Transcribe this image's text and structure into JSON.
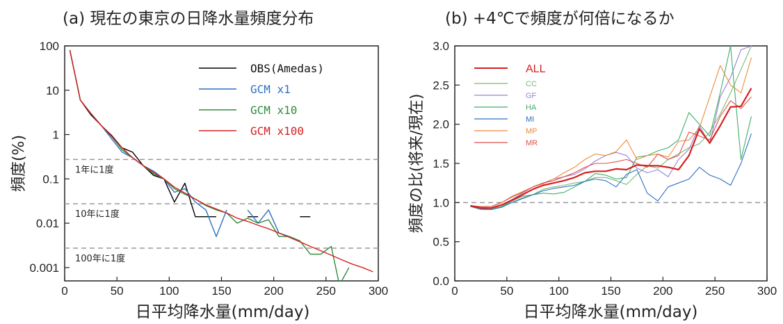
{
  "panel_a": {
    "title": "(a) 現在の東京の日降水量頻度分布",
    "xlabel": "日平均降水量(mm/day)",
    "ylabel": "頻度(%)",
    "ref_labels": [
      "1年に1度",
      "10年に1度",
      "100年に1度"
    ]
  },
  "panel_b": {
    "title": "(b) +4℃で頻度が何倍になるか",
    "xlabel": "日平均降水量(mm/day)",
    "ylabel": "頻度の比(将来/現在)"
  },
  "chart_data": [
    {
      "type": "line",
      "title": "(a) 現在の東京の日降水量頻度分布",
      "xlabel": "日平均降水量(mm/day)",
      "ylabel": "頻度(%)",
      "xlim": [
        0,
        300
      ],
      "ylim": [
        0.0005,
        100
      ],
      "yscale": "log",
      "x_ticks": [
        0,
        50,
        100,
        150,
        200,
        250,
        300
      ],
      "y_ticks": [
        0.001,
        0.01,
        0.1,
        1,
        10,
        100
      ],
      "y_tick_labels": [
        "0.001",
        "0.01",
        "0.1",
        "1",
        "10",
        "100"
      ],
      "grid": false,
      "legend": "top-right",
      "reference_lines": [
        {
          "y": 0.274,
          "label": "1年に1度"
        },
        {
          "y": 0.0274,
          "label": "10年に1度"
        },
        {
          "y": 0.00274,
          "label": "100年に1度"
        }
      ],
      "series": [
        {
          "name": "OBS(Amedas)",
          "color": "#000000",
          "segments": [
            [
              [
                5,
                80
              ],
              [
                15,
                6
              ],
              [
                25,
                2.8
              ],
              [
                35,
                1.6
              ],
              [
                45,
                0.95
              ],
              [
                55,
                0.5
              ],
              [
                65,
                0.4
              ],
              [
                75,
                0.2
              ],
              [
                85,
                0.12
              ],
              [
                95,
                0.1
              ],
              [
                105,
                0.03
              ],
              [
                115,
                0.08
              ],
              [
                125,
                0.014
              ],
              [
                135,
                0.014
              ],
              [
                145,
                0.014
              ]
            ],
            [
              [
                175,
                0.014
              ],
              [
                185,
                0.014
              ]
            ],
            [
              [
                225,
                0.014
              ],
              [
                235,
                0.014
              ]
            ]
          ]
        },
        {
          "name": "GCM x1",
          "color": "#2e6fc2",
          "segments": [
            [
              [
                5,
                80
              ],
              [
                15,
                6
              ],
              [
                25,
                3
              ],
              [
                35,
                1.6
              ],
              [
                45,
                0.8
              ],
              [
                55,
                0.4
              ],
              [
                65,
                0.3
              ],
              [
                75,
                0.2
              ],
              [
                85,
                0.15
              ],
              [
                95,
                0.1
              ],
              [
                105,
                0.05
              ],
              [
                115,
                0.06
              ],
              [
                125,
                0.03
              ],
              [
                135,
                0.02
              ],
              [
                145,
                0.005
              ],
              [
                155,
                0.02
              ]
            ],
            [
              [
                175,
                0.02
              ],
              [
                185,
                0.01
              ],
              [
                195,
                0.02
              ],
              [
                205,
                0.006
              ],
              [
                215,
                0.005
              ]
            ]
          ]
        },
        {
          "name": "GCM x10",
          "color": "#2e8b3a",
          "segments": [
            [
              [
                5,
                80
              ],
              [
                15,
                6
              ],
              [
                25,
                3
              ],
              [
                35,
                1.6
              ],
              [
                45,
                0.9
              ],
              [
                55,
                0.45
              ],
              [
                65,
                0.3
              ],
              [
                75,
                0.2
              ],
              [
                85,
                0.13
              ],
              [
                95,
                0.1
              ],
              [
                105,
                0.06
              ],
              [
                115,
                0.045
              ],
              [
                125,
                0.035
              ],
              [
                135,
                0.025
              ],
              [
                145,
                0.02
              ],
              [
                155,
                0.017
              ],
              [
                165,
                0.01
              ],
              [
                175,
                0.013
              ],
              [
                185,
                0.01
              ],
              [
                195,
                0.012
              ],
              [
                205,
                0.005
              ],
              [
                215,
                0.005
              ],
              [
                225,
                0.004
              ],
              [
                235,
                0.002
              ],
              [
                245,
                0.002
              ],
              [
                255,
                0.003
              ],
              [
                262,
                0.0005
              ]
            ],
            [
              [
                265,
                0.0005
              ],
              [
                272,
                0.001
              ]
            ]
          ]
        },
        {
          "name": "GCM x100",
          "color": "#d62020",
          "segments": [
            [
              [
                5,
                80
              ],
              [
                15,
                6
              ],
              [
                25,
                3
              ],
              [
                35,
                1.6
              ],
              [
                45,
                0.9
              ],
              [
                55,
                0.5
              ],
              [
                65,
                0.3
              ],
              [
                75,
                0.2
              ],
              [
                85,
                0.14
              ],
              [
                95,
                0.1
              ],
              [
                105,
                0.065
              ],
              [
                115,
                0.048
              ],
              [
                125,
                0.035
              ],
              [
                135,
                0.026
              ],
              [
                145,
                0.021
              ],
              [
                155,
                0.017
              ],
              [
                165,
                0.013
              ],
              [
                175,
                0.011
              ],
              [
                185,
                0.009
              ],
              [
                195,
                0.0075
              ],
              [
                205,
                0.006
              ],
              [
                215,
                0.0048
              ],
              [
                225,
                0.0038
              ],
              [
                235,
                0.003
              ],
              [
                245,
                0.0024
              ],
              [
                255,
                0.0019
              ],
              [
                265,
                0.0015
              ],
              [
                275,
                0.0012
              ],
              [
                285,
                0.001
              ],
              [
                295,
                0.0008
              ]
            ]
          ]
        }
      ]
    },
    {
      "type": "line",
      "title": "(b) +4℃で頻度が何倍になるか",
      "xlabel": "日平均降水量(mm/day)",
      "ylabel": "頻度の比(将来/現在)",
      "xlim": [
        0,
        300
      ],
      "ylim": [
        0,
        3
      ],
      "x_ticks": [
        0,
        50,
        100,
        150,
        200,
        250,
        300
      ],
      "y_ticks": [
        0.0,
        0.5,
        1.0,
        1.5,
        2.0,
        2.5,
        3.0
      ],
      "y_tick_labels": [
        "0.0",
        "0.5",
        "1.0",
        "1.5",
        "2.0",
        "2.5",
        "3.0"
      ],
      "grid": false,
      "legend": "top-left",
      "reference_lines": [
        {
          "y": 1.0
        }
      ],
      "series": [
        {
          "name": "ALL",
          "color": "#d62020",
          "bold": true,
          "x": [
            15,
            25,
            35,
            45,
            55,
            65,
            75,
            85,
            95,
            105,
            115,
            125,
            135,
            145,
            155,
            165,
            175,
            185,
            195,
            205,
            215,
            225,
            235,
            245,
            255,
            265,
            275,
            285
          ],
          "y": [
            0.96,
            0.93,
            0.93,
            0.97,
            1.03,
            1.1,
            1.17,
            1.22,
            1.25,
            1.28,
            1.32,
            1.38,
            1.4,
            1.4,
            1.43,
            1.42,
            1.48,
            1.47,
            1.47,
            1.45,
            1.42,
            1.6,
            1.94,
            1.76,
            1.98,
            2.22,
            2.23,
            2.46
          ]
        },
        {
          "name": "CC",
          "color": "#78b878",
          "x": [
            15,
            25,
            35,
            45,
            55,
            65,
            75,
            85,
            95,
            105,
            115,
            125,
            135,
            145,
            155,
            165,
            175,
            185,
            195,
            205,
            215,
            225,
            235,
            245,
            255,
            265,
            275,
            285
          ],
          "y": [
            0.95,
            0.91,
            0.91,
            0.95,
            1.0,
            1.06,
            1.1,
            1.17,
            1.2,
            1.22,
            1.25,
            1.27,
            1.32,
            1.32,
            1.28,
            1.23,
            1.36,
            1.47,
            1.44,
            1.55,
            1.62,
            1.7,
            1.75,
            1.9,
            2.13,
            2.4,
            2.7,
            3.0
          ]
        },
        {
          "name": "GF",
          "color": "#9a7ed0",
          "x": [
            15,
            25,
            35,
            45,
            55,
            65,
            75,
            85,
            95,
            105,
            115,
            125,
            135,
            145,
            155,
            165,
            175,
            185,
            195,
            205,
            215,
            225,
            235,
            245,
            255,
            265,
            275,
            285
          ],
          "y": [
            0.96,
            0.93,
            0.93,
            0.97,
            1.04,
            1.12,
            1.2,
            1.25,
            1.3,
            1.33,
            1.36,
            1.43,
            1.53,
            1.6,
            1.64,
            1.6,
            1.44,
            1.38,
            1.42,
            1.33,
            1.55,
            1.68,
            1.98,
            1.75,
            2.35,
            2.6,
            2.95,
            3.0
          ]
        },
        {
          "name": "HA",
          "color": "#3fae6a",
          "x": [
            15,
            25,
            35,
            45,
            55,
            65,
            75,
            85,
            95,
            105,
            115,
            125,
            135,
            145,
            155,
            165,
            175,
            185,
            195,
            205,
            215,
            225,
            235,
            245,
            255,
            265,
            275,
            285
          ],
          "y": [
            0.95,
            0.92,
            0.92,
            0.95,
            1.02,
            1.08,
            1.1,
            1.12,
            1.11,
            1.13,
            1.2,
            1.27,
            1.37,
            1.35,
            1.3,
            1.32,
            1.58,
            1.6,
            1.66,
            1.7,
            1.8,
            2.15,
            2.0,
            1.85,
            2.4,
            3.0,
            1.55,
            2.1
          ]
        },
        {
          "name": "MI",
          "color": "#2e6fc2",
          "x": [
            15,
            25,
            35,
            45,
            55,
            65,
            75,
            85,
            95,
            105,
            115,
            125,
            135,
            145,
            155,
            165,
            175,
            185,
            195,
            205,
            215,
            225,
            235,
            245,
            255,
            265,
            275,
            285
          ],
          "y": [
            0.95,
            0.92,
            0.91,
            0.94,
            1.0,
            1.05,
            1.1,
            1.15,
            1.18,
            1.2,
            1.22,
            1.27,
            1.3,
            1.28,
            1.2,
            1.36,
            1.42,
            1.12,
            1.02,
            1.2,
            1.25,
            1.3,
            1.45,
            1.35,
            1.3,
            1.22,
            1.5,
            1.88
          ]
        },
        {
          "name": "MP",
          "color": "#ec8a3b",
          "x": [
            15,
            25,
            35,
            45,
            55,
            65,
            75,
            85,
            95,
            105,
            115,
            125,
            135,
            145,
            155,
            165,
            175,
            185,
            195,
            205,
            215,
            225,
            235,
            245,
            255,
            265,
            275,
            285
          ],
          "y": [
            0.96,
            0.94,
            0.95,
            1.0,
            1.08,
            1.14,
            1.2,
            1.24,
            1.3,
            1.38,
            1.45,
            1.55,
            1.62,
            1.6,
            1.65,
            1.8,
            1.55,
            1.6,
            1.62,
            1.58,
            1.78,
            1.8,
            1.95,
            2.35,
            2.75,
            2.5,
            2.4,
            2.85
          ]
        },
        {
          "name": "MR",
          "color": "#e0504c",
          "x": [
            15,
            25,
            35,
            45,
            55,
            65,
            75,
            85,
            95,
            105,
            115,
            125,
            135,
            145,
            155,
            165,
            175,
            185,
            195,
            205,
            215,
            225,
            235,
            245,
            255,
            265,
            275,
            285
          ],
          "y": [
            0.96,
            0.95,
            0.95,
            1.0,
            1.07,
            1.13,
            1.2,
            1.25,
            1.28,
            1.33,
            1.38,
            1.45,
            1.5,
            1.5,
            1.52,
            1.55,
            1.5,
            1.45,
            1.62,
            1.55,
            1.6,
            1.9,
            1.85,
            1.8,
            2.1,
            2.3,
            2.2,
            2.35
          ]
        }
      ]
    }
  ]
}
